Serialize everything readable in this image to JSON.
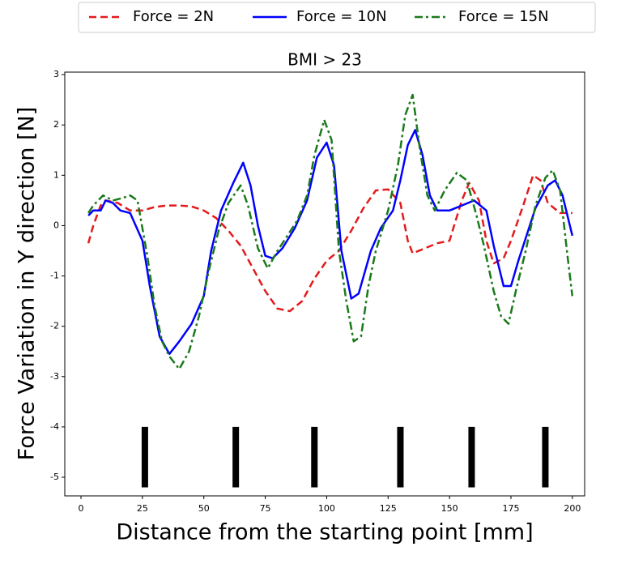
{
  "chart_data": {
    "type": "line",
    "title": "BMI > 23",
    "xlabel": "Distance from the starting point [mm]",
    "ylabel": "Force Variation in Y direction [N]",
    "xlim": [
      -6.6,
      205
    ],
    "ylim": [
      -5.37,
      3.05
    ],
    "xticks": [
      0,
      25,
      50,
      75,
      100,
      125,
      150,
      175,
      200
    ],
    "yticks": [
      -5,
      -4,
      -3,
      -2,
      -1,
      0,
      1,
      2,
      3
    ],
    "grid": false,
    "legend": "top",
    "markers": {
      "color": "#000000",
      "x": [
        26,
        63,
        95,
        130,
        159,
        189
      ],
      "ylim": [
        -5.2,
        -4
      ]
    },
    "series": [
      {
        "name": "Force = 2N",
        "color": "#e41a1c",
        "linestyle": "dashed",
        "x": [
          3,
          5,
          8,
          10,
          15,
          20,
          25,
          30,
          35,
          40,
          45,
          50,
          55,
          60,
          65,
          70,
          75,
          80,
          85,
          90,
          95,
          100,
          105,
          110,
          115,
          120,
          125,
          130,
          133,
          135,
          140,
          145,
          150,
          155,
          158,
          162,
          165,
          168,
          172,
          175,
          180,
          184,
          187,
          190,
          195,
          200
        ],
        "values": [
          -0.35,
          0.0,
          0.4,
          0.5,
          0.45,
          0.3,
          0.3,
          0.37,
          0.4,
          0.4,
          0.38,
          0.3,
          0.15,
          -0.1,
          -0.4,
          -0.85,
          -1.3,
          -1.65,
          -1.7,
          -1.5,
          -1.05,
          -0.7,
          -0.5,
          -0.1,
          0.35,
          0.7,
          0.72,
          0.45,
          -0.3,
          -0.55,
          -0.45,
          -0.35,
          -0.3,
          0.5,
          0.85,
          0.5,
          -0.3,
          -0.75,
          -0.65,
          -0.3,
          0.4,
          1.0,
          0.9,
          0.45,
          0.25,
          0.25
        ]
      },
      {
        "name": "Force = 10N",
        "color": "#0000ff",
        "linestyle": "solid",
        "x": [
          3,
          5,
          8,
          10,
          13,
          16,
          20,
          25,
          28,
          32,
          36,
          40,
          45,
          50,
          53,
          57,
          62,
          66,
          69,
          72,
          75,
          78,
          82,
          87,
          92,
          96,
          100,
          103,
          106,
          110,
          113,
          118,
          122,
          127,
          130,
          133,
          136,
          139,
          142,
          145,
          150,
          155,
          160,
          165,
          168,
          172,
          175,
          178,
          182,
          185,
          190,
          193,
          196,
          200
        ],
        "values": [
          0.2,
          0.3,
          0.3,
          0.5,
          0.45,
          0.3,
          0.25,
          -0.3,
          -1.2,
          -2.2,
          -2.55,
          -2.3,
          -1.95,
          -1.4,
          -0.5,
          0.3,
          0.85,
          1.25,
          0.8,
          0.0,
          -0.6,
          -0.65,
          -0.45,
          -0.05,
          0.5,
          1.35,
          1.65,
          1.2,
          -0.5,
          -1.45,
          -1.35,
          -0.5,
          -0.05,
          0.3,
          0.9,
          1.6,
          1.9,
          1.4,
          0.6,
          0.3,
          0.3,
          0.4,
          0.5,
          0.3,
          -0.4,
          -1.2,
          -1.2,
          -0.7,
          -0.1,
          0.35,
          0.8,
          0.9,
          0.6,
          -0.2
        ]
      },
      {
        "name": "Force = 15N",
        "color": "#1a7a1a",
        "linestyle": "dashdot",
        "x": [
          3,
          5,
          9,
          13,
          17,
          20,
          23,
          27,
          30,
          33,
          36,
          40,
          44,
          48,
          52,
          56,
          60,
          65,
          68,
          72,
          76,
          80,
          84,
          88,
          92,
          95,
          99,
          102,
          105,
          108,
          111,
          114,
          117,
          120,
          125,
          129,
          132,
          135,
          138,
          141,
          144,
          148,
          153,
          157,
          161,
          164,
          168,
          171,
          174,
          177,
          181,
          185,
          189,
          192,
          195,
          198,
          200
        ],
        "values": [
          0.25,
          0.4,
          0.6,
          0.5,
          0.55,
          0.6,
          0.5,
          -0.6,
          -1.6,
          -2.3,
          -2.6,
          -2.85,
          -2.5,
          -1.8,
          -0.9,
          -0.1,
          0.45,
          0.8,
          0.4,
          -0.45,
          -0.85,
          -0.5,
          -0.2,
          0.1,
          0.6,
          1.4,
          2.1,
          1.7,
          -0.5,
          -1.5,
          -2.3,
          -2.2,
          -1.2,
          -0.5,
          0.3,
          1.2,
          2.2,
          2.6,
          1.5,
          0.6,
          0.3,
          0.7,
          1.05,
          0.9,
          0.2,
          -0.4,
          -1.3,
          -1.8,
          -1.95,
          -1.3,
          -0.5,
          0.4,
          0.95,
          1.1,
          0.7,
          -0.6,
          -1.4
        ]
      }
    ]
  }
}
